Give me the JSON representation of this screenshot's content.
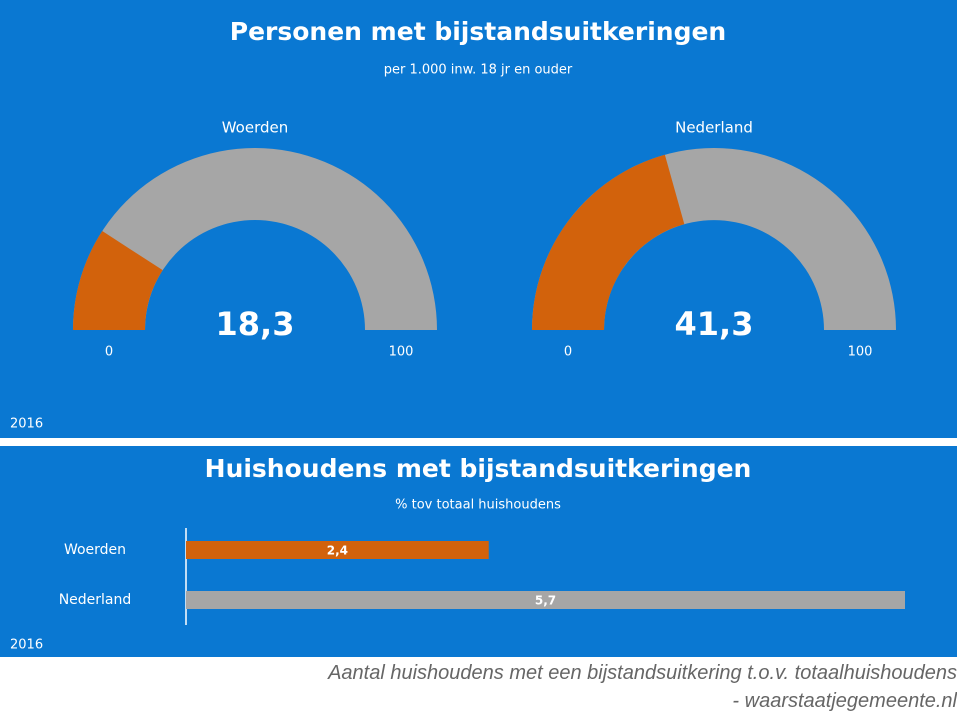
{
  "chart_data": [
    {
      "type": "gauge",
      "title": "Personen met bijstandsuitkeringen",
      "subtitle": "per 1.000 inw. 18 jr en ouder",
      "categories": [
        "Woerden",
        "Nederland"
      ],
      "values": [
        18.3,
        41.3
      ],
      "value_labels": [
        "18,3",
        "41,3"
      ],
      "ylim": [
        0,
        100
      ],
      "yticks": [
        0,
        100
      ],
      "color": "#d2620c",
      "track_color": "#a6a6a6",
      "footnote": "2016"
    },
    {
      "type": "hbar",
      "title": "Huishoudens met bijstandsuitkeringen",
      "subtitle": "% tov totaal huishoudens",
      "categories": [
        "Woerden",
        "Nederland"
      ],
      "values": [
        2.4,
        5.7
      ],
      "value_labels": [
        "2,4",
        "5,7"
      ],
      "xlim": [
        0,
        5.7
      ],
      "colors": [
        "#d2620c",
        "#a6a6a6"
      ],
      "footnote": "2016"
    }
  ],
  "caption": [
    "Aantal huishoudens met een bijstandsuitkering t.o.v. totaalhuishoudens",
    "- waarstaatjegemeente.nl"
  ]
}
